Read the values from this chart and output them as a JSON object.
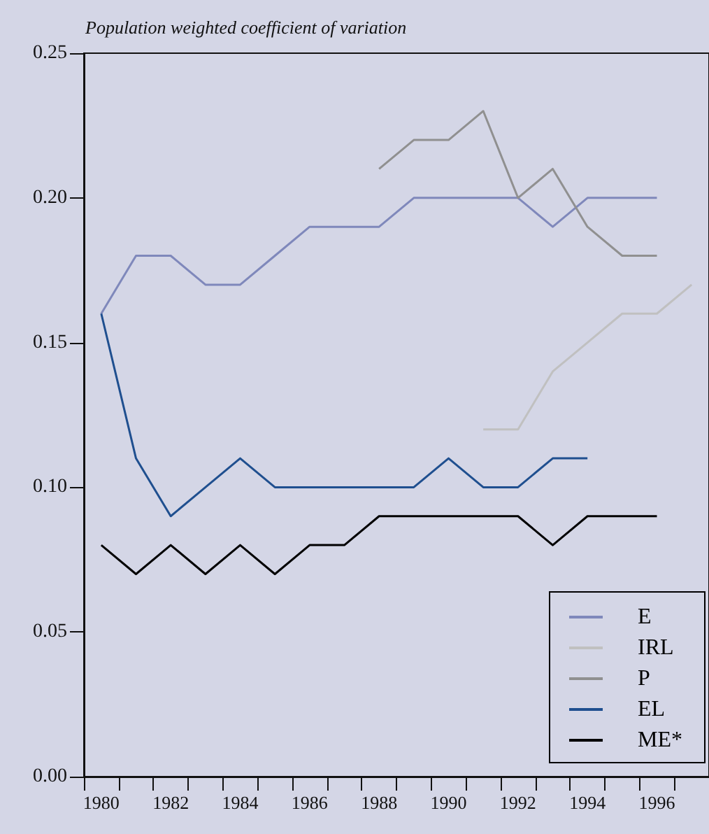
{
  "chart_data": {
    "type": "line",
    "title": "Population weighted coefficient of variation",
    "categories": [
      "1980",
      null,
      "1982",
      null,
      "1984",
      null,
      "1986",
      null,
      "1988",
      null,
      "1990",
      null,
      "1992",
      null,
      "1994",
      null,
      "1996",
      null
    ],
    "series": [
      {
        "name": "E",
        "color": "#7f88bb",
        "values": [
          0.16,
          0.18,
          0.18,
          0.17,
          0.17,
          0.18,
          0.19,
          0.19,
          0.19,
          0.2,
          0.2,
          0.2,
          0.2,
          0.19,
          0.2,
          0.2,
          0.2,
          null
        ]
      },
      {
        "name": "IRL",
        "color": "#c0c0c0",
        "values": [
          null,
          null,
          null,
          null,
          null,
          null,
          null,
          null,
          null,
          null,
          null,
          0.12,
          0.12,
          0.14,
          0.15,
          0.16,
          0.16,
          0.17
        ]
      },
      {
        "name": "P",
        "color": "#909090",
        "values": [
          null,
          null,
          null,
          null,
          null,
          null,
          null,
          null,
          0.21,
          0.22,
          0.22,
          0.23,
          0.2,
          0.21,
          0.19,
          0.18,
          0.18,
          null
        ]
      },
      {
        "name": "EL",
        "color": "#1f4f8f",
        "values": [
          0.16,
          0.11,
          0.09,
          0.1,
          0.11,
          0.1,
          0.1,
          0.1,
          0.1,
          0.1,
          0.11,
          0.1,
          0.1,
          0.11,
          0.11,
          null,
          null,
          null
        ]
      },
      {
        "name": "ME*",
        "color": "#000000",
        "values": [
          0.08,
          0.07,
          0.08,
          0.07,
          0.08,
          0.07,
          0.08,
          0.08,
          0.09,
          0.09,
          0.09,
          0.09,
          0.09,
          0.08,
          0.09,
          0.09,
          0.09,
          null
        ]
      }
    ],
    "ylim": [
      0,
      0.25
    ],
    "yticks": [
      {
        "value": 0,
        "label": "0.00"
      },
      {
        "value": 0.05,
        "label": "0.05"
      },
      {
        "value": 0.1,
        "label": "0.10"
      },
      {
        "value": 0.15,
        "label": "0.15"
      },
      {
        "value": 0.2,
        "label": "0.20"
      },
      {
        "value": 0.25,
        "label": "0.25"
      }
    ],
    "legend": "bottom right",
    "grid": false,
    "marker": "none",
    "line_style": "solid"
  }
}
